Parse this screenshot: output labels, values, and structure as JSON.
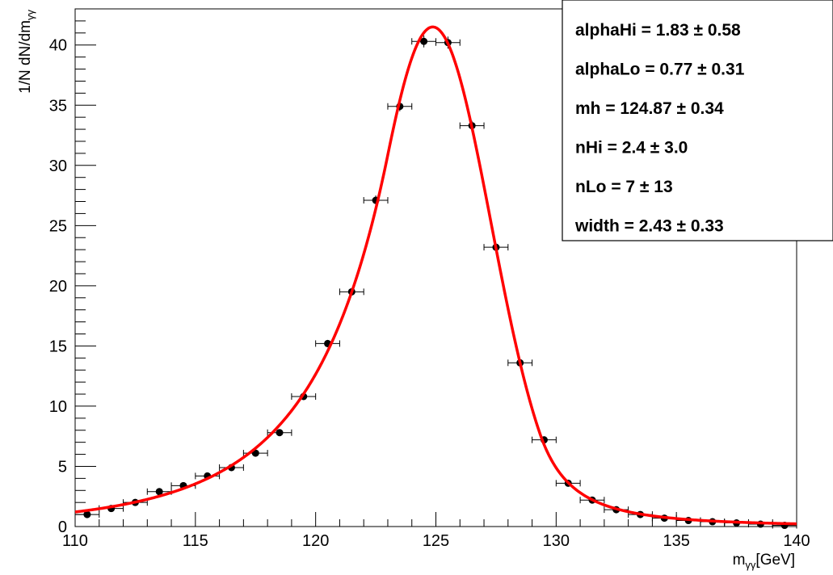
{
  "chart_data": {
    "type": "scatter",
    "xlabel": {
      "base": "m",
      "sub": "γγ",
      "unit": "[GeV]"
    },
    "ylabel": {
      "base": "1/N dN/dm",
      "sub": "γγ"
    },
    "xlim": [
      110,
      140
    ],
    "ylim": [
      0,
      43
    ],
    "x_ticks": [
      "110",
      "115",
      "120",
      "125",
      "130",
      "135",
      "140"
    ],
    "y_ticks": [
      "0",
      "5",
      "10",
      "15",
      "20",
      "25",
      "30",
      "35",
      "40"
    ],
    "bin_half_width": 0.5,
    "grid": false,
    "series": [
      {
        "kind": "data-points",
        "x": [
          110.5,
          111.5,
          112.5,
          113.5,
          114.5,
          115.5,
          116.5,
          117.5,
          118.5,
          119.5,
          120.5,
          121.5,
          122.5,
          123.5,
          124.5,
          125.5,
          126.5,
          127.5,
          128.5,
          129.5,
          130.5,
          131.5,
          132.5,
          133.5,
          134.5,
          135.5,
          136.5,
          137.5,
          138.5,
          139.5
        ],
        "y": [
          1.0,
          1.5,
          2.0,
          2.9,
          3.4,
          4.2,
          4.9,
          6.1,
          7.8,
          10.8,
          15.2,
          19.5,
          27.1,
          34.9,
          40.3,
          40.2,
          33.3,
          23.2,
          13.6,
          7.2,
          3.6,
          2.2,
          1.4,
          1.0,
          0.7,
          0.5,
          0.4,
          0.3,
          0.2,
          0.1
        ],
        "yerr": [
          0.2,
          0.2,
          0.2,
          0.2,
          0.2,
          0.2,
          0.2,
          0.2,
          0.2,
          0.2,
          0.3,
          0.3,
          0.4,
          0.4,
          0.5,
          0.5,
          0.4,
          0.3,
          0.3,
          0.2,
          0.2,
          0.2,
          0.2,
          0.1,
          0.1,
          0.1,
          0.1,
          0.1,
          0.1,
          0.1
        ],
        "color": "#000000"
      },
      {
        "kind": "fit-curve",
        "function": "double-sided crystal ball",
        "params": {
          "mh": 124.87,
          "width": 2.43,
          "alphaLo": 0.77,
          "nLo": 7,
          "alphaHi": 1.83,
          "nHi": 2.4
        },
        "peak": 41.5,
        "color": "#ff0000"
      }
    ],
    "stats_box": {
      "placement": "top-right",
      "lines": [
        "alphaHi =  1.83 ± 0.58",
        "alphaLo =  0.77 ± 0.31",
        "mh =  124.87 ± 0.34",
        "nHi =  2.4 ± 3.0",
        "nLo =  7 ± 13",
        "width =  2.43 ± 0.33"
      ]
    }
  }
}
